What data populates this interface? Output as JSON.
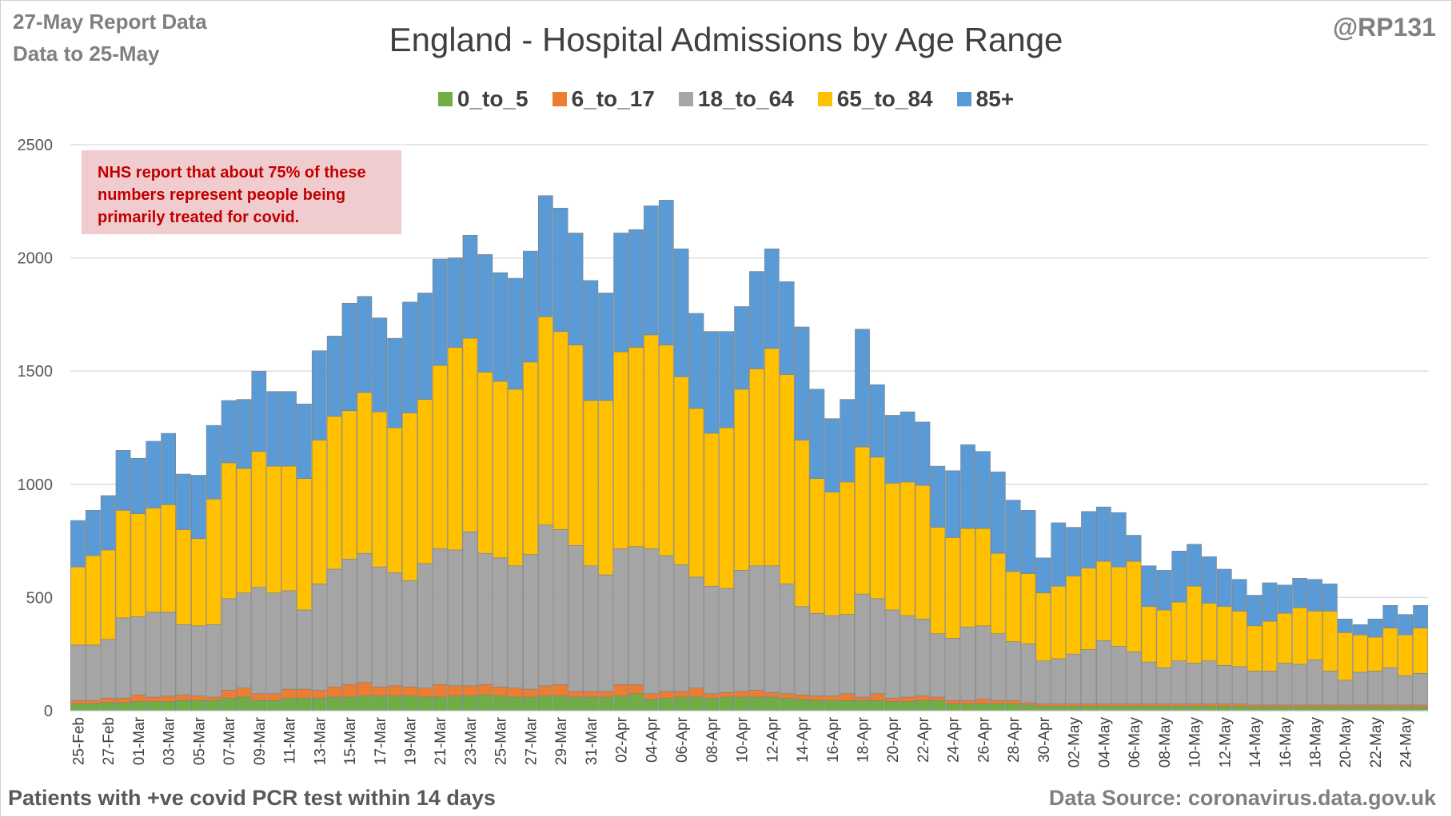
{
  "header": {
    "report_line1": "27-May Report Data",
    "report_line2": "Data to 25-May",
    "handle": "@RP131"
  },
  "note": "NHS report that about 75% of these numbers represent people being primarily treated for covid.",
  "footer": {
    "left": "Patients with  +ve covid PCR test within 14 days",
    "right": "Data Source: coronavirus.data.gov.uk"
  },
  "chart_data": {
    "type": "bar",
    "stacked": true,
    "title": "England - Hospital Admissions by Age Range",
    "xlabel": "",
    "ylabel": "",
    "ylim": [
      0,
      2500
    ],
    "yticks": [
      0,
      500,
      1000,
      1500,
      2000,
      2500
    ],
    "grid": true,
    "legend": "top-center",
    "categories": [
      "25-Feb",
      "26-Feb",
      "27-Feb",
      "28-Feb",
      "01-Mar",
      "02-Mar",
      "03-Mar",
      "04-Mar",
      "05-Mar",
      "06-Mar",
      "07-Mar",
      "08-Mar",
      "09-Mar",
      "10-Mar",
      "11-Mar",
      "12-Mar",
      "13-Mar",
      "14-Mar",
      "15-Mar",
      "16-Mar",
      "17-Mar",
      "18-Mar",
      "19-Mar",
      "20-Mar",
      "21-Mar",
      "22-Mar",
      "23-Mar",
      "24-Mar",
      "25-Mar",
      "26-Mar",
      "27-Mar",
      "28-Mar",
      "29-Mar",
      "30-Mar",
      "31-Mar",
      "01-Apr",
      "02-Apr",
      "03-Apr",
      "04-Apr",
      "05-Apr",
      "06-Apr",
      "07-Apr",
      "08-Apr",
      "09-Apr",
      "10-Apr",
      "11-Apr",
      "12-Apr",
      "13-Apr",
      "14-Apr",
      "15-Apr",
      "16-Apr",
      "17-Apr",
      "18-Apr",
      "19-Apr",
      "20-Apr",
      "21-Apr",
      "22-Apr",
      "23-Apr",
      "24-Apr",
      "25-Apr",
      "26-Apr",
      "27-Apr",
      "28-Apr",
      "29-Apr",
      "30-Apr",
      "01-May",
      "02-May",
      "03-May",
      "04-May",
      "05-May",
      "06-May",
      "07-May",
      "08-May",
      "09-May",
      "10-May",
      "11-May",
      "12-May",
      "13-May",
      "14-May",
      "15-May",
      "16-May",
      "17-May",
      "18-May",
      "19-May",
      "20-May",
      "21-May",
      "22-May",
      "23-May",
      "24-May",
      "25-May"
    ],
    "tick_labels": [
      "25-Feb",
      "27-Feb",
      "01-Mar",
      "03-Mar",
      "05-Mar",
      "07-Mar",
      "09-Mar",
      "11-Mar",
      "13-Mar",
      "15-Mar",
      "17-Mar",
      "19-Mar",
      "21-Mar",
      "23-Mar",
      "25-Mar",
      "27-Mar",
      "29-Mar",
      "31-Mar",
      "02-Apr",
      "04-Apr",
      "06-Apr",
      "08-Apr",
      "10-Apr",
      "12-Apr",
      "14-Apr",
      "16-Apr",
      "18-Apr",
      "20-Apr",
      "22-Apr",
      "24-Apr",
      "26-Apr",
      "28-Apr",
      "30-Apr",
      "02-May",
      "04-May",
      "06-May",
      "08-May",
      "10-May",
      "12-May",
      "14-May",
      "16-May",
      "18-May",
      "20-May",
      "22-May",
      "24-May"
    ],
    "series": [
      {
        "name": "0_to_5",
        "color": "#70ad47",
        "values": [
          30,
          30,
          35,
          35,
          40,
          40,
          40,
          45,
          45,
          45,
          55,
          60,
          45,
          45,
          55,
          55,
          55,
          60,
          60,
          65,
          65,
          65,
          65,
          60,
          60,
          65,
          65,
          70,
          65,
          60,
          60,
          65,
          65,
          60,
          60,
          60,
          65,
          75,
          50,
          55,
          60,
          60,
          55,
          60,
          60,
          60,
          60,
          55,
          50,
          45,
          45,
          45,
          45,
          45,
          40,
          40,
          45,
          45,
          30,
          30,
          30,
          30,
          30,
          25,
          20,
          20,
          20,
          20,
          20,
          20,
          20,
          20,
          20,
          20,
          20,
          20,
          20,
          20,
          15,
          15,
          15,
          15,
          15,
          15,
          15,
          15,
          15,
          15,
          15,
          15
        ]
      },
      {
        "name": "6_to_17",
        "color": "#ed7d31",
        "values": [
          15,
          15,
          20,
          20,
          30,
          20,
          25,
          25,
          20,
          15,
          35,
          40,
          30,
          30,
          40,
          40,
          35,
          45,
          55,
          60,
          40,
          45,
          40,
          40,
          55,
          45,
          45,
          45,
          40,
          40,
          35,
          45,
          50,
          25,
          25,
          25,
          50,
          40,
          25,
          30,
          25,
          40,
          20,
          20,
          25,
          30,
          20,
          20,
          20,
          20,
          20,
          30,
          15,
          30,
          15,
          20,
          20,
          15,
          15,
          15,
          20,
          15,
          15,
          10,
          10,
          10,
          10,
          10,
          10,
          10,
          10,
          10,
          10,
          10,
          10,
          10,
          10,
          10,
          10,
          10,
          10,
          10,
          10,
          10,
          10,
          10,
          10,
          10,
          10,
          10
        ]
      },
      {
        "name": "18_to_64",
        "color": "#a5a5a5",
        "values": [
          245,
          245,
          260,
          355,
          345,
          375,
          370,
          310,
          310,
          320,
          405,
          420,
          470,
          445,
          435,
          350,
          470,
          520,
          555,
          570,
          530,
          500,
          470,
          550,
          600,
          600,
          680,
          580,
          570,
          540,
          595,
          710,
          685,
          645,
          555,
          515,
          600,
          610,
          640,
          600,
          560,
          490,
          475,
          460,
          535,
          550,
          560,
          485,
          390,
          365,
          355,
          350,
          455,
          420,
          390,
          360,
          340,
          280,
          275,
          325,
          325,
          295,
          260,
          260,
          190,
          200,
          220,
          240,
          280,
          255,
          230,
          185,
          160,
          190,
          180,
          190,
          170,
          165,
          150,
          150,
          185,
          180,
          200,
          150,
          110,
          145,
          150,
          165,
          130,
          140
        ]
      },
      {
        "name": "65_to_84",
        "color": "#ffc000",
        "values": [
          345,
          395,
          395,
          475,
          455,
          460,
          475,
          420,
          385,
          555,
          600,
          550,
          600,
          560,
          550,
          580,
          635,
          675,
          655,
          710,
          685,
          640,
          740,
          725,
          810,
          895,
          855,
          800,
          780,
          780,
          850,
          920,
          875,
          885,
          730,
          770,
          870,
          880,
          945,
          930,
          830,
          745,
          675,
          710,
          800,
          870,
          960,
          925,
          735,
          595,
          545,
          585,
          650,
          625,
          560,
          590,
          590,
          470,
          445,
          435,
          430,
          355,
          310,
          310,
          300,
          320,
          345,
          360,
          350,
          350,
          400,
          245,
          255,
          260,
          340,
          255,
          260,
          245,
          200,
          220,
          220,
          250,
          215,
          265,
          210,
          165,
          150,
          175,
          180,
          200
        ]
      },
      {
        "name": "85+",
        "color": "#5b9bd5",
        "values": [
          205,
          200,
          240,
          265,
          245,
          295,
          315,
          245,
          280,
          325,
          275,
          305,
          355,
          330,
          330,
          330,
          395,
          355,
          475,
          425,
          415,
          395,
          490,
          470,
          470,
          395,
          455,
          520,
          480,
          490,
          490,
          535,
          545,
          495,
          530,
          475,
          525,
          520,
          570,
          640,
          565,
          420,
          450,
          425,
          365,
          430,
          440,
          410,
          500,
          395,
          325,
          365,
          520,
          320,
          300,
          310,
          280,
          270,
          295,
          370,
          340,
          360,
          315,
          280,
          155,
          280,
          215,
          250,
          240,
          240,
          115,
          180,
          175,
          225,
          185,
          205,
          165,
          140,
          135,
          170,
          125,
          130,
          140,
          120,
          60,
          45,
          80,
          100,
          90,
          100
        ]
      }
    ]
  }
}
